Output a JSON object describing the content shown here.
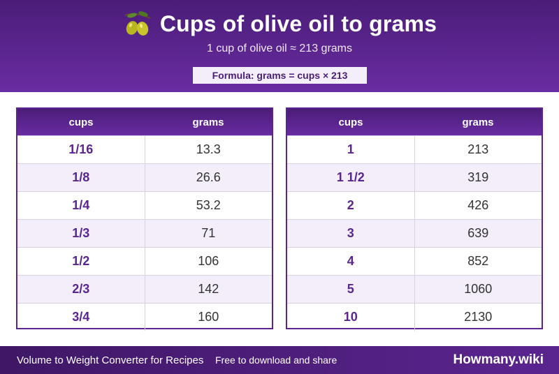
{
  "header": {
    "title": "Cups of olive oil to grams",
    "title_icon": "olive-icon",
    "subtitle": "1 cup of olive oil ≈ 213 grams",
    "formula": "Formula: grams = cups × 213"
  },
  "tables": [
    {
      "columns": [
        "cups",
        "grams"
      ],
      "rows": [
        {
          "cups": "1/16",
          "grams": "13.3"
        },
        {
          "cups": "1/8",
          "grams": "26.6"
        },
        {
          "cups": "1/4",
          "grams": "53.2"
        },
        {
          "cups": "1/3",
          "grams": "71"
        },
        {
          "cups": "1/2",
          "grams": "106"
        },
        {
          "cups": "2/3",
          "grams": "142"
        },
        {
          "cups": "3/4",
          "grams": "160"
        }
      ]
    },
    {
      "columns": [
        "cups",
        "grams"
      ],
      "rows": [
        {
          "cups": "1",
          "grams": "213"
        },
        {
          "cups": "1 1/2",
          "grams": "319"
        },
        {
          "cups": "2",
          "grams": "426"
        },
        {
          "cups": "3",
          "grams": "639"
        },
        {
          "cups": "4",
          "grams": "852"
        },
        {
          "cups": "5",
          "grams": "1060"
        },
        {
          "cups": "10",
          "grams": "2130"
        }
      ]
    }
  ],
  "footer": {
    "left_text": "Volume to Weight Converter for Recipes",
    "middle_text": "Free to download and share",
    "brand": "Howmany.wiki"
  },
  "colors": {
    "primary": "#5b2590",
    "header_dark": "#4a1d78",
    "row_alt": "#f3eef9"
  }
}
